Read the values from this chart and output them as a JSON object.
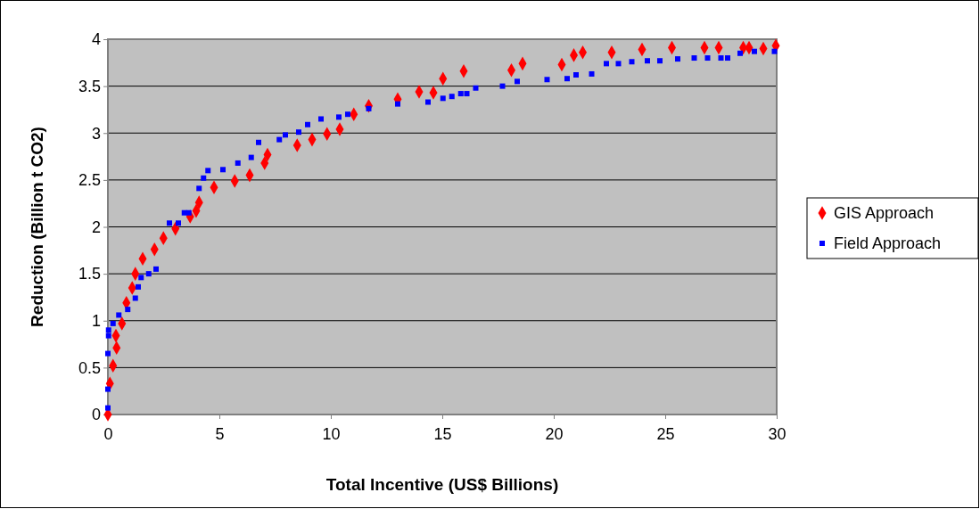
{
  "chart_data": {
    "type": "scatter",
    "xlabel": "Total Incentive (US$ Billions)",
    "ylabel": "Reduction (Billion t CO2)",
    "xlim": [
      0,
      30
    ],
    "xticks": [
      0,
      5,
      10,
      15,
      20,
      25,
      30
    ],
    "ylim": [
      0,
      4
    ],
    "yticks": [
      0,
      0.5,
      1,
      1.5,
      2,
      2.5,
      3,
      3.5,
      4
    ],
    "grid": "y",
    "legend": "right",
    "series": [
      {
        "name": "GIS Approach",
        "color": "#ff0000",
        "marker": "diamond",
        "x": [
          0,
          0.09,
          0.23,
          0.39,
          0.36,
          0.63,
          0.83,
          1.09,
          1.23,
          1.56,
          2.09,
          2.49,
          3.03,
          3.69,
          3.96,
          4.09,
          4.76,
          5.69,
          6.36,
          7.03,
          7.16,
          8.49,
          9.16,
          9.83,
          10.4,
          11.03,
          11.7,
          13.0,
          13.96,
          14.6,
          15.03,
          15.96,
          18.1,
          18.6,
          20.36,
          20.9,
          21.3,
          22.6,
          23.96,
          25.3,
          26.76,
          27.4,
          28.5,
          28.76,
          29.4,
          29.96
        ],
        "values": [
          0,
          0.33,
          0.52,
          0.71,
          0.84,
          0.97,
          1.19,
          1.35,
          1.5,
          1.66,
          1.76,
          1.88,
          1.98,
          2.11,
          2.17,
          2.26,
          2.42,
          2.49,
          2.55,
          2.68,
          2.77,
          2.87,
          2.93,
          2.99,
          3.04,
          3.2,
          3.29,
          3.36,
          3.44,
          3.43,
          3.58,
          3.66,
          3.67,
          3.74,
          3.73,
          3.83,
          3.86,
          3.86,
          3.89,
          3.91,
          3.91,
          3.91,
          3.91,
          3.91,
          3.9,
          3.93
        ]
      },
      {
        "name": "Field Approach",
        "color": "#0000ff",
        "marker": "square",
        "x": [
          0,
          0,
          0,
          0.03,
          0.03,
          0.23,
          0.49,
          0.89,
          1.23,
          1.36,
          1.49,
          1.83,
          2.16,
          2.76,
          3.16,
          3.43,
          3.63,
          4.09,
          4.29,
          4.49,
          5.16,
          5.83,
          6.43,
          6.76,
          7.69,
          7.96,
          8.56,
          8.96,
          9.56,
          10.36,
          10.76,
          11.7,
          13.0,
          14.36,
          15.03,
          15.43,
          15.83,
          16.1,
          16.5,
          17.7,
          18.36,
          19.7,
          20.6,
          21.0,
          21.7,
          22.36,
          22.9,
          23.5,
          24.2,
          24.76,
          25.56,
          26.3,
          26.9,
          27.5,
          27.8,
          28.36,
          29.0,
          29.9
        ],
        "values": [
          0.07,
          0.27,
          0.65,
          0.84,
          0.9,
          0.97,
          1.06,
          1.12,
          1.24,
          1.36,
          1.46,
          1.5,
          1.55,
          2.04,
          2.04,
          2.15,
          2.15,
          2.41,
          2.52,
          2.6,
          2.61,
          2.68,
          2.74,
          2.9,
          2.93,
          2.98,
          3.01,
          3.09,
          3.15,
          3.17,
          3.2,
          3.26,
          3.31,
          3.33,
          3.37,
          3.39,
          3.42,
          3.42,
          3.48,
          3.5,
          3.55,
          3.57,
          3.58,
          3.62,
          3.63,
          3.74,
          3.74,
          3.76,
          3.77,
          3.77,
          3.79,
          3.8,
          3.8,
          3.8,
          3.8,
          3.85,
          3.87,
          3.87
        ]
      }
    ]
  }
}
